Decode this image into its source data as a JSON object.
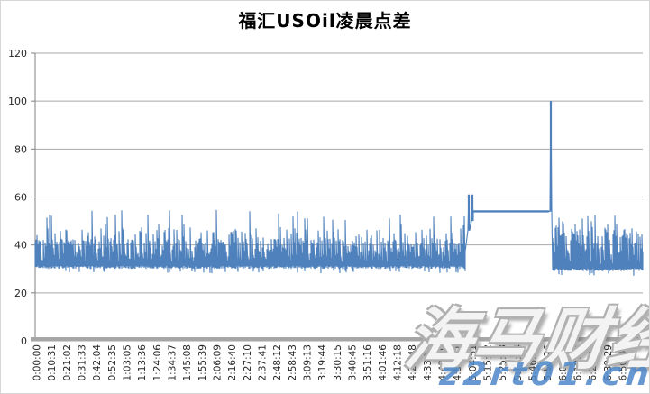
{
  "chart": {
    "title": "福汇USOil凌晨点差",
    "watermark_text": "海马财经",
    "watermark_url": "z2rt01.cn",
    "colors": {
      "line": "#4f81bd",
      "gridline": "#a9a9a9",
      "axis_line": "#808080",
      "axis_bar": "#a6a6a6",
      "tick_label": "#262626",
      "watermark_url_color": "#4e87c9",
      "watermark_outline": "#b0b0b0"
    }
  },
  "chart_data": {
    "type": "line",
    "title": "福汇USOil凌晨点差",
    "xlabel": "",
    "ylabel": "",
    "ylim": [
      0,
      120
    ],
    "yticks": [
      0,
      20,
      40,
      60,
      80,
      100,
      120
    ],
    "grid": "horizontal",
    "legend": "none",
    "x_tick_labels": [
      "0:00:00",
      "0:10:31",
      "0:21:02",
      "0:31:33",
      "0:42:04",
      "0:52:35",
      "1:03:05",
      "1:13:36",
      "1:24:06",
      "1:34:37",
      "1:45:08",
      "1:55:39",
      "2:06:09",
      "2:16:40",
      "2:27:10",
      "2:37:41",
      "2:48:12",
      "2:58:43",
      "3:09:13",
      "3:19:44",
      "3:30:15",
      "3:40:45",
      "3:51:16",
      "4:01:46",
      "4:12:18",
      "4:22:48",
      "4:33:19",
      "4:43:50",
      "4:54:21",
      "5:04:51",
      "5:15:22",
      "5:25:53",
      "5:36:24",
      "5:46:53",
      "5:57:26",
      "6:07:56",
      "6:18:27",
      "6:28:58",
      "6:39:29",
      "6:50:00"
    ],
    "render_seed": 9,
    "series": [
      {
        "name": "点差",
        "color": "#4f81bd",
        "segments": [
          {
            "kind": "noise",
            "from": 0.0,
            "to": 0.708,
            "base": 30,
            "typical_high": 44,
            "spike_high": 55
          },
          {
            "kind": "spike",
            "at": 0.713,
            "value": 61,
            "base": 46
          },
          {
            "kind": "spike",
            "at": 0.7195,
            "value": 61,
            "base": 50
          },
          {
            "kind": "flat",
            "from": 0.721,
            "to": 0.8455,
            "value": 54
          },
          {
            "kind": "spike",
            "at": 0.8485,
            "value": 100,
            "base": 54
          },
          {
            "kind": "noise",
            "from": 0.852,
            "to": 1.0,
            "base": 29,
            "typical_high": 46,
            "spike_high": 53
          }
        ]
      }
    ]
  }
}
